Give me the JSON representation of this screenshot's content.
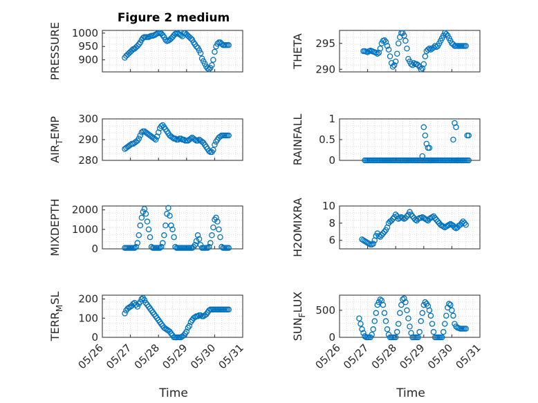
{
  "figure": {
    "title": "Figure 2 medium",
    "xlabel": "Time",
    "marker_color": "#0072BD",
    "x_tick_labels": [
      "05/26",
      "05/27",
      "05/28",
      "05/29",
      "05/30",
      "05/31"
    ]
  },
  "chart_data": [
    {
      "type": "scatter",
      "ylabel": "PRESSURE",
      "xlim": [
        0,
        5
      ],
      "ylim": [
        855,
        1010
      ],
      "yticks": [
        900,
        950,
        1000
      ],
      "ytick_labels": [
        "900",
        "950",
        "1000"
      ],
      "grid": true,
      "x": [
        0.8,
        0.85,
        0.9,
        0.95,
        1.0,
        1.05,
        1.1,
        1.15,
        1.2,
        1.25,
        1.3,
        1.35,
        1.4,
        1.45,
        1.5,
        1.55,
        1.6,
        1.65,
        1.7,
        1.75,
        1.8,
        1.85,
        1.9,
        1.95,
        2.0,
        2.05,
        2.1,
        2.15,
        2.2,
        2.25,
        2.3,
        2.35,
        2.4,
        2.45,
        2.5,
        2.55,
        2.6,
        2.65,
        2.7,
        2.75,
        2.8,
        2.85,
        2.9,
        2.95,
        3.0,
        3.05,
        3.1,
        3.15,
        3.2,
        3.25,
        3.3,
        3.35,
        3.4,
        3.45,
        3.5,
        3.55,
        3.6,
        3.65,
        3.7,
        3.75,
        3.8,
        3.85,
        3.9,
        3.95,
        4.0,
        4.05,
        4.1,
        4.15,
        4.2,
        4.25,
        4.3,
        4.35,
        4.4,
        4.45,
        4.5
      ],
      "y": [
        908,
        915,
        920,
        925,
        930,
        935,
        940,
        942,
        947,
        952,
        958,
        965,
        975,
        982,
        985,
        985,
        985,
        985,
        988,
        990,
        990,
        992,
        995,
        998,
        1000,
        1000,
        998,
        992,
        985,
        975,
        970,
        972,
        975,
        980,
        985,
        992,
        997,
        1000,
        998,
        995,
        992,
        988,
        1000,
        1000,
        995,
        990,
        985,
        980,
        975,
        965,
        958,
        950,
        945,
        935,
        925,
        905,
        895,
        885,
        875,
        868,
        865,
        870,
        880,
        900,
        930,
        950,
        960,
        965,
        965,
        960,
        955,
        955,
        955,
        955,
        955
      ]
    },
    {
      "type": "scatter",
      "ylabel": "THETA",
      "xlim": [
        0,
        5
      ],
      "ylim": [
        289.5,
        297.5
      ],
      "yticks": [
        290,
        295
      ],
      "ytick_labels": [
        "290",
        "295"
      ],
      "grid": true,
      "x": [
        0.85,
        0.9,
        0.95,
        1.0,
        1.05,
        1.1,
        1.15,
        1.2,
        1.25,
        1.3,
        1.35,
        1.4,
        1.45,
        1.5,
        1.55,
        1.6,
        1.65,
        1.7,
        1.75,
        1.8,
        1.85,
        1.9,
        1.95,
        2.0,
        2.05,
        2.1,
        2.15,
        2.2,
        2.25,
        2.3,
        2.35,
        2.4,
        2.45,
        2.5,
        2.55,
        2.6,
        2.65,
        2.7,
        2.75,
        2.8,
        2.85,
        2.9,
        2.95,
        3.0,
        3.05,
        3.1,
        3.15,
        3.2,
        3.25,
        3.3,
        3.35,
        3.4,
        3.45,
        3.5,
        3.55,
        3.6,
        3.65,
        3.7,
        3.75,
        3.8,
        3.85,
        3.9,
        3.95,
        4.0,
        4.05,
        4.1,
        4.15,
        4.2,
        4.25,
        4.3,
        4.35,
        4.4,
        4.45,
        4.5
      ],
      "y": [
        293.5,
        293.5,
        293.4,
        293.3,
        293.5,
        293.6,
        293.5,
        293.4,
        293.3,
        293.2,
        293.0,
        293.2,
        294.0,
        295.0,
        295.5,
        295.6,
        295.3,
        294.5,
        293.8,
        292.5,
        291.2,
        290.5,
        290.8,
        291.5,
        293.0,
        295.0,
        296.2,
        297.0,
        297.0,
        296.5,
        295.5,
        294.0,
        292.0,
        291.5,
        291.0,
        290.8,
        291.2,
        291.0,
        291.0,
        290.8,
        290.5,
        290.0,
        290.2,
        291.0,
        292.5,
        293.5,
        293.8,
        294.0,
        293.8,
        294.0,
        294.2,
        294.5,
        294.3,
        294.5,
        295.0,
        295.5,
        296.0,
        296.5,
        297.0,
        296.8,
        296.5,
        296.0,
        295.5,
        295.0,
        294.8,
        294.5,
        294.5,
        294.5,
        294.5,
        294.5,
        294.5,
        294.5,
        294.5,
        294.5
      ]
    },
    {
      "type": "scatter",
      "ylabel": "AIR_TEMP",
      "ylabel_display": {
        "base": "AIR",
        "sub": "T",
        "rest": "EMP"
      },
      "xlim": [
        0,
        5
      ],
      "ylim": [
        280,
        300
      ],
      "yticks": [
        280,
        290,
        300
      ],
      "ytick_labels": [
        "280",
        "290",
        "300"
      ],
      "grid": true,
      "x": [
        0.8,
        0.85,
        0.9,
        0.95,
        1.0,
        1.05,
        1.1,
        1.15,
        1.2,
        1.25,
        1.3,
        1.35,
        1.4,
        1.45,
        1.5,
        1.55,
        1.6,
        1.65,
        1.7,
        1.75,
        1.8,
        1.85,
        1.9,
        1.95,
        2.0,
        2.05,
        2.1,
        2.15,
        2.2,
        2.25,
        2.3,
        2.35,
        2.4,
        2.45,
        2.5,
        2.55,
        2.6,
        2.65,
        2.7,
        2.75,
        2.8,
        2.85,
        2.9,
        2.95,
        3.0,
        3.05,
        3.1,
        3.15,
        3.2,
        3.25,
        3.3,
        3.35,
        3.4,
        3.45,
        3.5,
        3.55,
        3.6,
        3.65,
        3.7,
        3.75,
        3.8,
        3.85,
        3.9,
        3.95,
        4.0,
        4.05,
        4.1,
        4.15,
        4.2,
        4.25,
        4.3,
        4.35,
        4.4,
        4.45,
        4.5
      ],
      "y": [
        285.5,
        286.0,
        286.5,
        287.0,
        287.5,
        288.0,
        288.0,
        288.5,
        289.0,
        289.5,
        290.5,
        292.0,
        293.5,
        294.0,
        294.0,
        293.5,
        293.0,
        292.5,
        292.0,
        291.5,
        291.0,
        290.5,
        290.0,
        291.5,
        293.5,
        295.5,
        296.5,
        297.0,
        296.0,
        295.0,
        294.0,
        293.0,
        292.0,
        291.5,
        291.0,
        290.5,
        290.5,
        290.0,
        290.0,
        290.5,
        290.5,
        290.0,
        290.0,
        289.5,
        289.5,
        289.5,
        290.0,
        290.5,
        291.0,
        290.5,
        290.0,
        289.5,
        289.5,
        290.0,
        289.5,
        289.0,
        288.5,
        287.5,
        286.5,
        285.5,
        284.5,
        284.0,
        284.0,
        285.0,
        287.5,
        289.0,
        290.0,
        291.0,
        291.5,
        292.0,
        292.0,
        292.0,
        292.0,
        292.0,
        292.0
      ]
    },
    {
      "type": "scatter",
      "ylabel": "RAINFALL",
      "xlim": [
        0,
        5
      ],
      "ylim": [
        0,
        1
      ],
      "yticks": [
        0,
        0.5,
        1
      ],
      "ytick_labels": [
        "0",
        "0.5",
        "1"
      ],
      "grid": true,
      "x": [
        0.9,
        0.95,
        1.0,
        1.05,
        1.1,
        1.15,
        1.2,
        1.25,
        1.3,
        1.35,
        1.4,
        1.45,
        1.5,
        1.55,
        1.6,
        1.65,
        1.7,
        1.75,
        1.8,
        1.85,
        1.9,
        1.95,
        2.0,
        2.05,
        2.1,
        2.15,
        2.2,
        2.25,
        2.3,
        2.35,
        2.4,
        2.45,
        2.5,
        2.55,
        2.6,
        2.65,
        2.7,
        2.75,
        2.8,
        2.85,
        2.9,
        2.95,
        3.0,
        3.05,
        3.1,
        3.15,
        3.2,
        3.25,
        3.3,
        3.35,
        3.4,
        3.45,
        3.5,
        3.55,
        3.6,
        3.65,
        3.7,
        3.75,
        3.8,
        3.85,
        3.9,
        3.95,
        4.0,
        4.05,
        4.1,
        4.15,
        4.2,
        4.25,
        4.3,
        4.35,
        4.4,
        4.45,
        4.5,
        4.55,
        4.6,
        2.95,
        3.0,
        3.05,
        3.1,
        3.15,
        3.2,
        3.25,
        4.05,
        4.1,
        4.15,
        4.2,
        4.55,
        4.6
      ],
      "y": [
        0,
        0,
        0,
        0,
        0,
        0,
        0,
        0,
        0,
        0,
        0,
        0,
        0,
        0,
        0,
        0,
        0,
        0,
        0,
        0,
        0,
        0,
        0,
        0,
        0,
        0,
        0,
        0,
        0,
        0,
        0,
        0,
        0,
        0,
        0,
        0,
        0,
        0,
        0,
        0,
        0,
        0,
        0,
        0,
        0,
        0,
        0,
        0,
        0,
        0,
        0,
        0,
        0,
        0,
        0,
        0,
        0,
        0,
        0,
        0,
        0,
        0,
        0,
        0,
        0,
        0,
        0,
        0,
        0,
        0,
        0,
        0,
        0,
        0,
        0,
        0.1,
        0.8,
        0.6,
        0.4,
        0.3,
        0.3,
        0.0,
        0.5,
        0.9,
        0.8,
        0.0,
        0.6,
        0.6
      ]
    },
    {
      "type": "scatter",
      "ylabel": "MIXDEPTH",
      "xlim": [
        0,
        5
      ],
      "ylim": [
        0,
        2200
      ],
      "yticks": [
        0,
        1000,
        2000
      ],
      "ytick_labels": [
        "0",
        "1000",
        "2000"
      ],
      "grid": true,
      "x": [
        0.8,
        0.85,
        0.9,
        0.95,
        1.0,
        1.05,
        1.1,
        1.15,
        1.2,
        1.25,
        1.3,
        1.35,
        1.4,
        1.45,
        1.5,
        1.55,
        1.6,
        1.65,
        1.7,
        1.75,
        1.8,
        1.85,
        1.9,
        1.95,
        2.0,
        2.05,
        2.1,
        2.15,
        2.2,
        2.25,
        2.3,
        2.35,
        2.4,
        2.45,
        2.5,
        2.55,
        2.6,
        2.65,
        2.7,
        2.75,
        2.8,
        2.85,
        2.9,
        2.95,
        3.0,
        3.05,
        3.1,
        3.15,
        3.2,
        3.25,
        3.3,
        3.35,
        3.4,
        3.45,
        3.5,
        3.55,
        3.6,
        3.65,
        3.7,
        3.75,
        3.8,
        3.85,
        3.9,
        3.95,
        4.0,
        4.05,
        4.1,
        4.15,
        4.2,
        4.25,
        4.3,
        4.35,
        4.4,
        4.45,
        4.5
      ],
      "y": [
        50,
        50,
        50,
        50,
        50,
        50,
        50,
        50,
        100,
        300,
        700,
        1200,
        1600,
        1900,
        2050,
        1800,
        1400,
        1000,
        600,
        100,
        50,
        50,
        50,
        50,
        50,
        50,
        100,
        300,
        700,
        1200,
        1800,
        2100,
        1700,
        1200,
        1000,
        600,
        100,
        50,
        50,
        50,
        50,
        50,
        50,
        50,
        50,
        50,
        50,
        50,
        50,
        100,
        200,
        400,
        700,
        500,
        200,
        50,
        50,
        50,
        50,
        50,
        100,
        300,
        700,
        1100,
        1500,
        1600,
        1400,
        1000,
        600,
        100,
        50,
        50,
        50,
        50,
        50
      ]
    },
    {
      "type": "scatter",
      "ylabel": "H2OMIXRA",
      "xlim": [
        0,
        5
      ],
      "ylim": [
        5,
        10
      ],
      "yticks": [
        6,
        8,
        10
      ],
      "ytick_labels": [
        "6",
        "8",
        "10"
      ],
      "grid": true,
      "x": [
        0.8,
        0.85,
        0.9,
        0.95,
        1.0,
        1.05,
        1.1,
        1.15,
        1.2,
        1.25,
        1.3,
        1.35,
        1.4,
        1.45,
        1.5,
        1.55,
        1.6,
        1.65,
        1.7,
        1.75,
        1.8,
        1.85,
        1.9,
        1.95,
        2.0,
        2.05,
        2.1,
        2.15,
        2.2,
        2.25,
        2.3,
        2.35,
        2.4,
        2.45,
        2.5,
        2.55,
        2.6,
        2.65,
        2.7,
        2.75,
        2.8,
        2.85,
        2.9,
        2.95,
        3.0,
        3.05,
        3.1,
        3.15,
        3.2,
        3.25,
        3.3,
        3.35,
        3.4,
        3.45,
        3.5,
        3.55,
        3.6,
        3.65,
        3.7,
        3.75,
        3.8,
        3.85,
        3.9,
        3.95,
        4.0,
        4.05,
        4.1,
        4.15,
        4.2,
        4.25,
        4.3,
        4.35,
        4.4,
        4.45,
        4.5
      ],
      "y": [
        6.1,
        6.0,
        5.9,
        5.8,
        5.7,
        5.6,
        5.5,
        5.5,
        5.6,
        6.0,
        6.5,
        6.8,
        6.5,
        6.4,
        6.6,
        6.8,
        7.0,
        7.2,
        7.5,
        8.0,
        8.2,
        8.3,
        8.5,
        8.7,
        9.0,
        8.8,
        8.5,
        8.6,
        8.7,
        8.6,
        8.5,
        8.6,
        8.8,
        9.0,
        9.3,
        9.0,
        8.8,
        8.6,
        8.4,
        8.3,
        8.5,
        8.6,
        8.6,
        8.7,
        8.6,
        8.5,
        8.4,
        8.3,
        8.5,
        8.6,
        8.7,
        8.8,
        8.6,
        8.4,
        8.2,
        8.0,
        7.8,
        7.7,
        7.6,
        7.5,
        7.6,
        7.7,
        7.8,
        7.9,
        7.8,
        7.7,
        7.5,
        7.4,
        7.5,
        7.7,
        7.8,
        8.0,
        8.2,
        8.0,
        7.8
      ]
    },
    {
      "type": "scatter",
      "ylabel": "TERR_MSL",
      "ylabel_display": {
        "base": "TERR",
        "sub": "M",
        "rest": "SL"
      },
      "xlim": [
        0,
        5
      ],
      "ylim": [
        0,
        220
      ],
      "yticks": [
        0,
        100,
        200
      ],
      "ytick_labels": [
        "0",
        "100",
        "200"
      ],
      "grid": true,
      "x": [
        0.8,
        0.85,
        0.9,
        0.95,
        1.0,
        1.05,
        1.1,
        1.15,
        1.2,
        1.25,
        1.3,
        1.35,
        1.4,
        1.45,
        1.5,
        1.55,
        1.6,
        1.65,
        1.7,
        1.75,
        1.8,
        1.85,
        1.9,
        1.95,
        2.0,
        2.05,
        2.1,
        2.15,
        2.2,
        2.25,
        2.3,
        2.35,
        2.4,
        2.45,
        2.5,
        2.55,
        2.6,
        2.65,
        2.7,
        2.75,
        2.8,
        2.85,
        2.9,
        2.95,
        3.0,
        3.05,
        3.1,
        3.15,
        3.2,
        3.25,
        3.3,
        3.35,
        3.4,
        3.45,
        3.5,
        3.55,
        3.6,
        3.65,
        3.7,
        3.75,
        3.8,
        3.85,
        3.9,
        3.95,
        4.0,
        4.05,
        4.1,
        4.15,
        4.2,
        4.25,
        4.3,
        4.35,
        4.4,
        4.45,
        4.5
      ],
      "y": [
        125,
        140,
        150,
        155,
        160,
        165,
        175,
        180,
        170,
        160,
        175,
        185,
        200,
        205,
        195,
        180,
        170,
        160,
        150,
        140,
        130,
        120,
        110,
        100,
        90,
        80,
        70,
        60,
        50,
        45,
        40,
        35,
        30,
        20,
        10,
        0,
        0,
        0,
        0,
        0,
        0,
        5,
        10,
        20,
        30,
        50,
        60,
        80,
        90,
        100,
        105,
        110,
        110,
        115,
        115,
        110,
        110,
        115,
        120,
        130,
        140,
        145,
        145,
        145,
        145,
        145,
        145,
        145,
        145,
        145,
        145,
        145,
        145,
        145,
        145
      ]
    },
    {
      "type": "scatter",
      "ylabel": "SUN_FLUX",
      "ylabel_display": {
        "base": "SUN",
        "sub": "F",
        "rest": "LUX"
      },
      "xlim": [
        0,
        5
      ],
      "ylim": [
        0,
        780
      ],
      "yticks": [
        0,
        500
      ],
      "ytick_labels": [
        "0",
        "500"
      ],
      "grid": true,
      "x": [
        0.7,
        0.75,
        0.8,
        0.85,
        0.9,
        0.95,
        1.0,
        1.05,
        1.1,
        1.15,
        1.2,
        1.25,
        1.3,
        1.35,
        1.4,
        1.45,
        1.5,
        1.55,
        1.6,
        1.65,
        1.7,
        1.75,
        1.8,
        1.85,
        1.9,
        1.95,
        2.0,
        2.05,
        2.1,
        2.15,
        2.2,
        2.25,
        2.3,
        2.35,
        2.4,
        2.45,
        2.5,
        2.55,
        2.6,
        2.65,
        2.7,
        2.75,
        2.8,
        2.85,
        2.9,
        2.95,
        3.0,
        3.05,
        3.1,
        3.15,
        3.2,
        3.25,
        3.3,
        3.35,
        3.4,
        3.45,
        3.5,
        3.55,
        3.6,
        3.65,
        3.7,
        3.75,
        3.8,
        3.85,
        3.9,
        3.95,
        4.0,
        4.05,
        4.1,
        4.15,
        4.2,
        4.25,
        4.3,
        4.35,
        4.4,
        4.45,
        4.5
      ],
      "y": [
        350,
        250,
        150,
        80,
        20,
        0,
        0,
        0,
        0,
        50,
        150,
        300,
        450,
        600,
        650,
        700,
        680,
        600,
        450,
        300,
        150,
        50,
        0,
        0,
        0,
        0,
        0,
        100,
        250,
        450,
        600,
        700,
        720,
        650,
        500,
        350,
        200,
        80,
        0,
        0,
        0,
        0,
        0,
        100,
        300,
        450,
        600,
        650,
        620,
        580,
        500,
        400,
        250,
        100,
        0,
        0,
        0,
        0,
        0,
        0,
        100,
        250,
        400,
        550,
        620,
        600,
        500,
        400,
        250,
        200,
        180,
        170,
        160,
        160,
        160,
        160,
        160
      ]
    }
  ]
}
